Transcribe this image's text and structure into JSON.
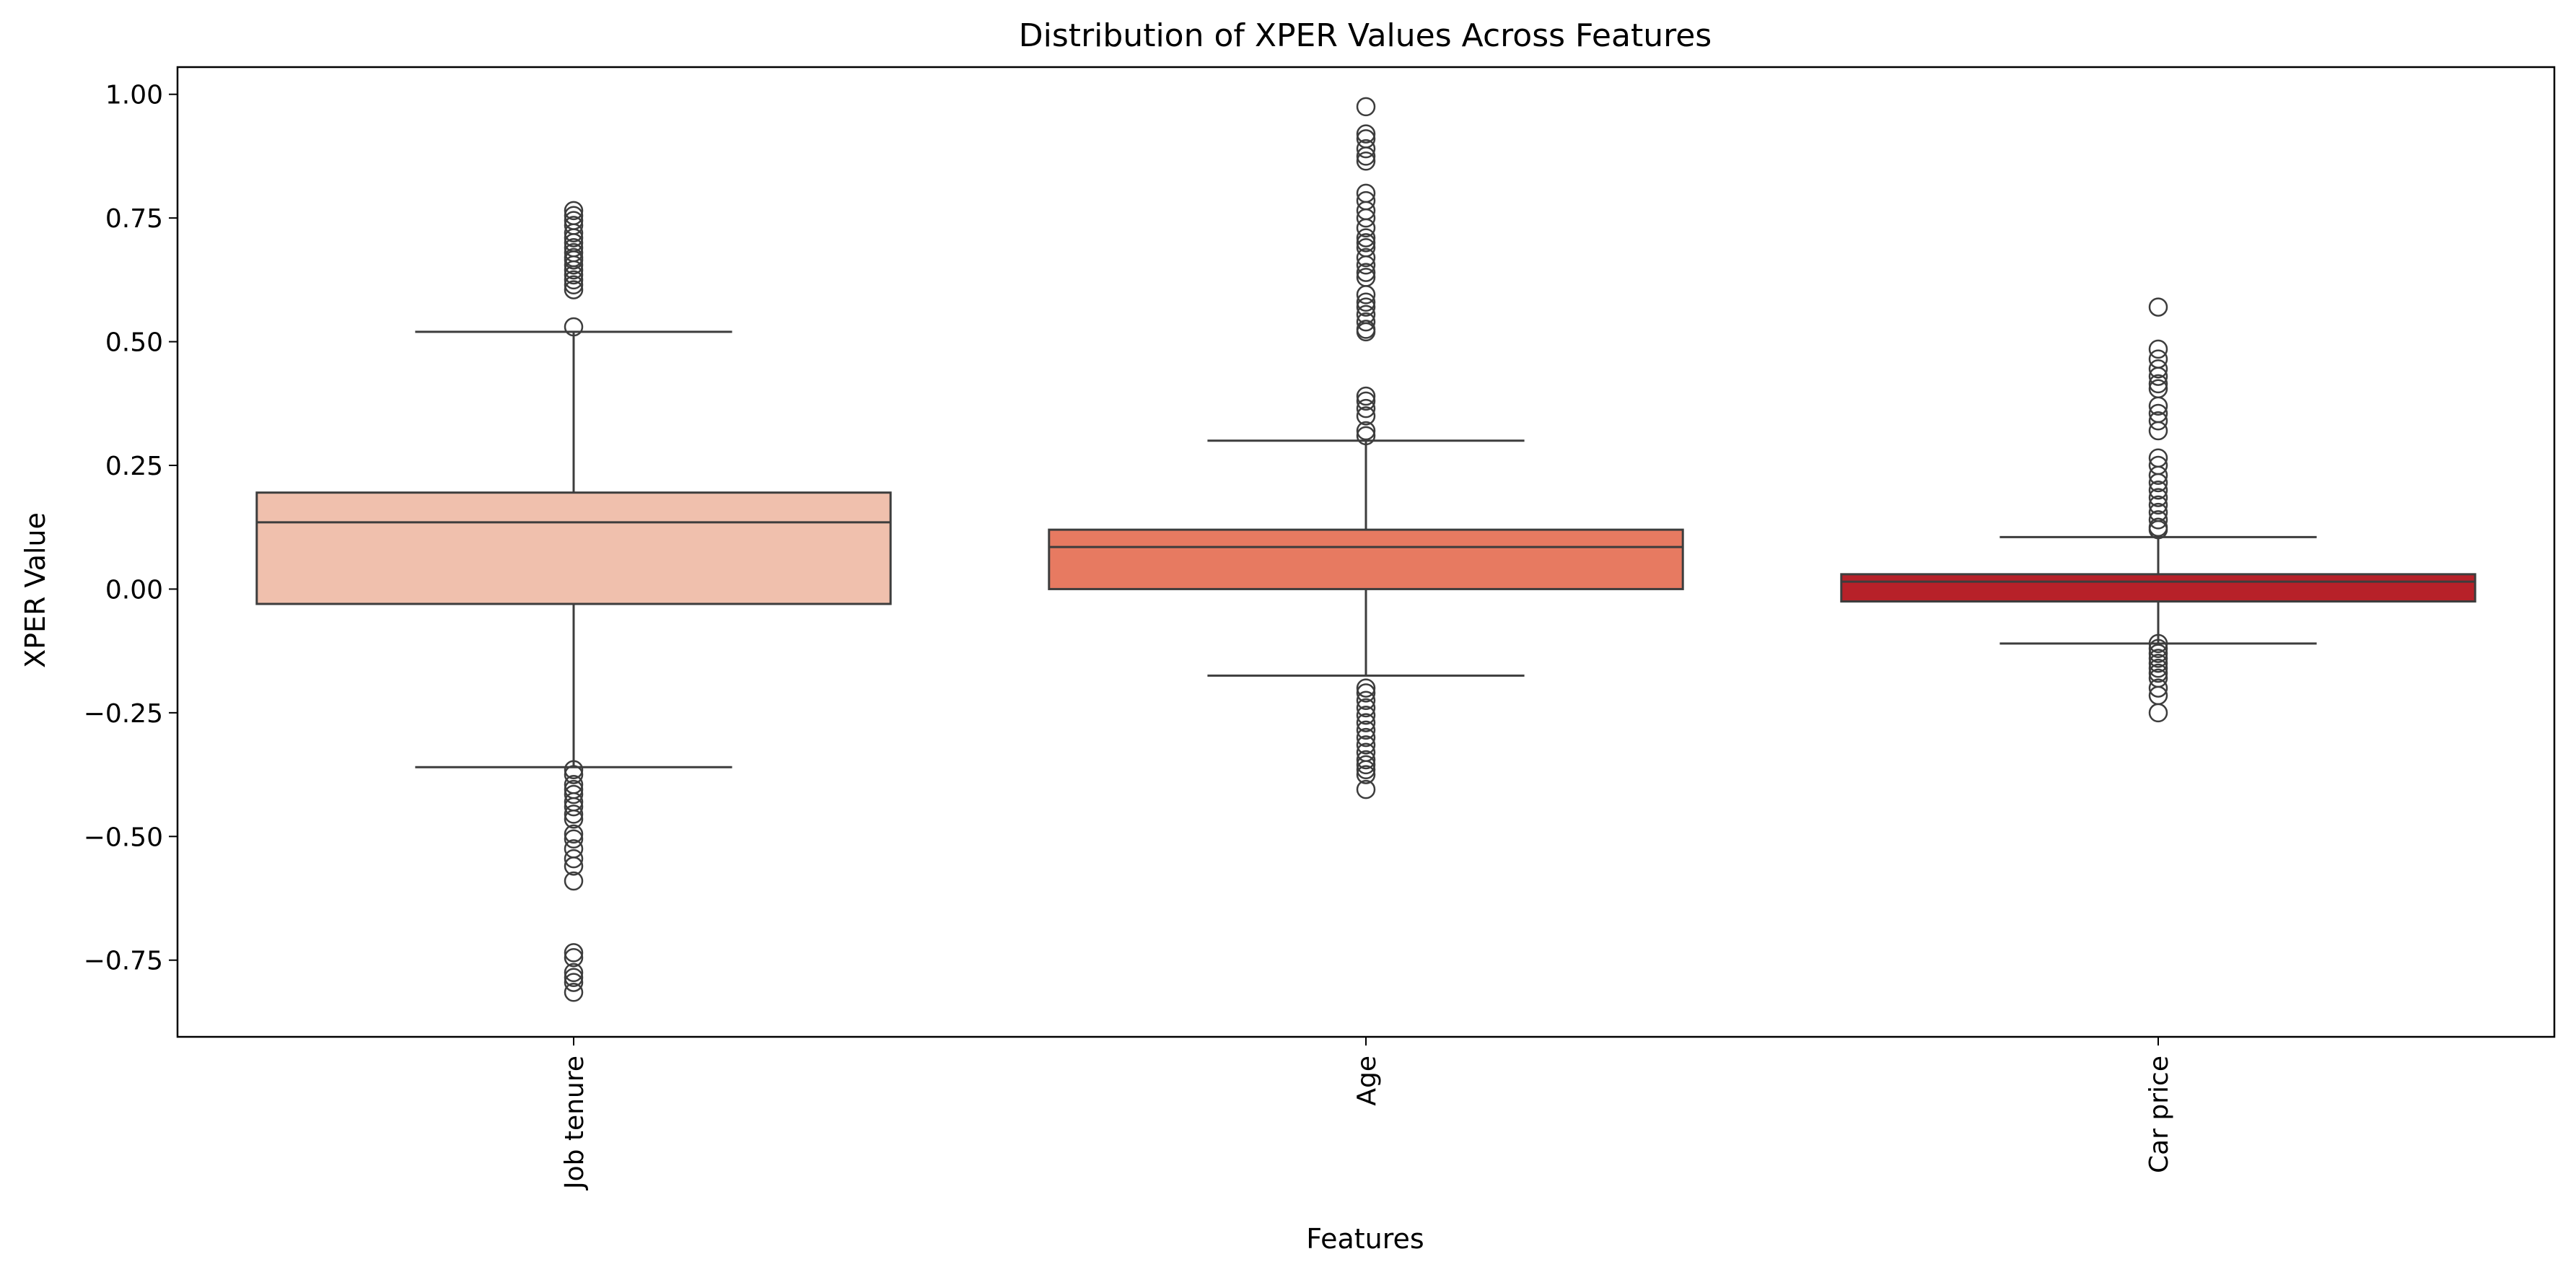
{
  "chart_data": {
    "type": "box",
    "title": "Distribution of XPER Values Across Features",
    "xlabel": "Features",
    "ylabel": "XPER Value",
    "ylim": [
      -0.905,
      1.055
    ],
    "yticks": [
      -0.75,
      -0.5,
      -0.25,
      0.0,
      0.25,
      0.5,
      0.75,
      1.0
    ],
    "ytick_labels": [
      "−0.75",
      "−0.50",
      "−0.25",
      "0.00",
      "0.25",
      "0.50",
      "0.75",
      "1.00"
    ],
    "grid": false,
    "legend": "none",
    "categories": [
      "Job tenure",
      "Age",
      "Car price"
    ],
    "boxes": [
      {
        "category": "Job tenure",
        "color": "#f0c0ad",
        "q1": -0.03,
        "median": 0.135,
        "q3": 0.195,
        "whisker_low": -0.36,
        "whisker_high": 0.52,
        "outliers": [
          0.765,
          0.755,
          0.745,
          0.735,
          0.72,
          0.71,
          0.7,
          0.69,
          0.68,
          0.67,
          0.665,
          0.655,
          0.645,
          0.635,
          0.625,
          0.615,
          0.605,
          0.53,
          -0.365,
          -0.375,
          -0.395,
          -0.405,
          -0.415,
          -0.43,
          -0.44,
          -0.455,
          -0.465,
          -0.495,
          -0.505,
          -0.525,
          -0.545,
          -0.56,
          -0.59,
          -0.735,
          -0.745,
          -0.775,
          -0.785,
          -0.795,
          -0.815
        ]
      },
      {
        "category": "Age",
        "color": "#e77a61",
        "q1": 0.0,
        "median": 0.085,
        "q3": 0.12,
        "whisker_low": -0.175,
        "whisker_high": 0.3,
        "outliers": [
          0.975,
          0.92,
          0.91,
          0.89,
          0.875,
          0.865,
          0.8,
          0.785,
          0.765,
          0.75,
          0.73,
          0.71,
          0.7,
          0.69,
          0.67,
          0.655,
          0.64,
          0.63,
          0.595,
          0.58,
          0.57,
          0.555,
          0.54,
          0.525,
          0.52,
          0.39,
          0.38,
          0.365,
          0.35,
          0.32,
          0.31,
          -0.2,
          -0.21,
          -0.225,
          -0.24,
          -0.255,
          -0.27,
          -0.285,
          -0.3,
          -0.315,
          -0.33,
          -0.345,
          -0.355,
          -0.365,
          -0.375,
          -0.405
        ]
      },
      {
        "category": "Car price",
        "color": "#b72129",
        "q1": -0.025,
        "median": 0.015,
        "q3": 0.03,
        "whisker_low": -0.11,
        "whisker_high": 0.105,
        "outliers": [
          0.57,
          0.485,
          0.465,
          0.445,
          0.43,
          0.415,
          0.405,
          0.37,
          0.355,
          0.34,
          0.32,
          0.265,
          0.25,
          0.23,
          0.215,
          0.2,
          0.185,
          0.17,
          0.155,
          0.14,
          0.125,
          0.12,
          -0.11,
          -0.12,
          -0.13,
          -0.14,
          -0.15,
          -0.16,
          -0.17,
          -0.18,
          -0.2,
          -0.215,
          -0.25
        ]
      }
    ]
  }
}
